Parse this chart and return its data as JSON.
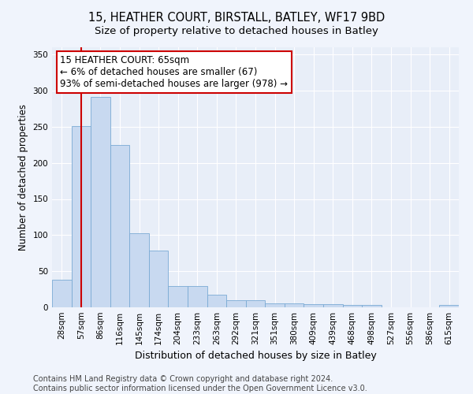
{
  "title1": "15, HEATHER COURT, BIRSTALL, BATLEY, WF17 9BD",
  "title2": "Size of property relative to detached houses in Batley",
  "xlabel": "Distribution of detached houses by size in Batley",
  "ylabel": "Number of detached properties",
  "categories": [
    "28sqm",
    "57sqm",
    "86sqm",
    "116sqm",
    "145sqm",
    "174sqm",
    "204sqm",
    "233sqm",
    "263sqm",
    "292sqm",
    "321sqm",
    "351sqm",
    "380sqm",
    "409sqm",
    "439sqm",
    "468sqm",
    "498sqm",
    "527sqm",
    "556sqm",
    "586sqm",
    "615sqm"
  ],
  "values": [
    38,
    251,
    291,
    225,
    103,
    79,
    29,
    29,
    18,
    10,
    10,
    5,
    5,
    4,
    4,
    3,
    3,
    0,
    0,
    0,
    3
  ],
  "bar_color": "#c8d9f0",
  "bar_edge_color": "#7aaad4",
  "vline_x": 1.0,
  "vline_color": "#cc0000",
  "annotation_title": "15 HEATHER COURT: 65sqm",
  "annotation_line1": "← 6% of detached houses are smaller (67)",
  "annotation_line2": "93% of semi-detached houses are larger (978) →",
  "annotation_box_color": "#ffffff",
  "annotation_box_edge": "#cc0000",
  "ylim": [
    0,
    360
  ],
  "yticks": [
    0,
    50,
    100,
    150,
    200,
    250,
    300,
    350
  ],
  "footer1": "Contains HM Land Registry data © Crown copyright and database right 2024.",
  "footer2": "Contains public sector information licensed under the Open Government Licence v3.0.",
  "bg_color": "#e8eef8",
  "grid_color": "#ffffff",
  "title1_fontsize": 10.5,
  "title2_fontsize": 9.5,
  "xlabel_fontsize": 9,
  "ylabel_fontsize": 8.5,
  "tick_fontsize": 7.5,
  "annotation_fontsize": 8.5,
  "footer_fontsize": 7
}
